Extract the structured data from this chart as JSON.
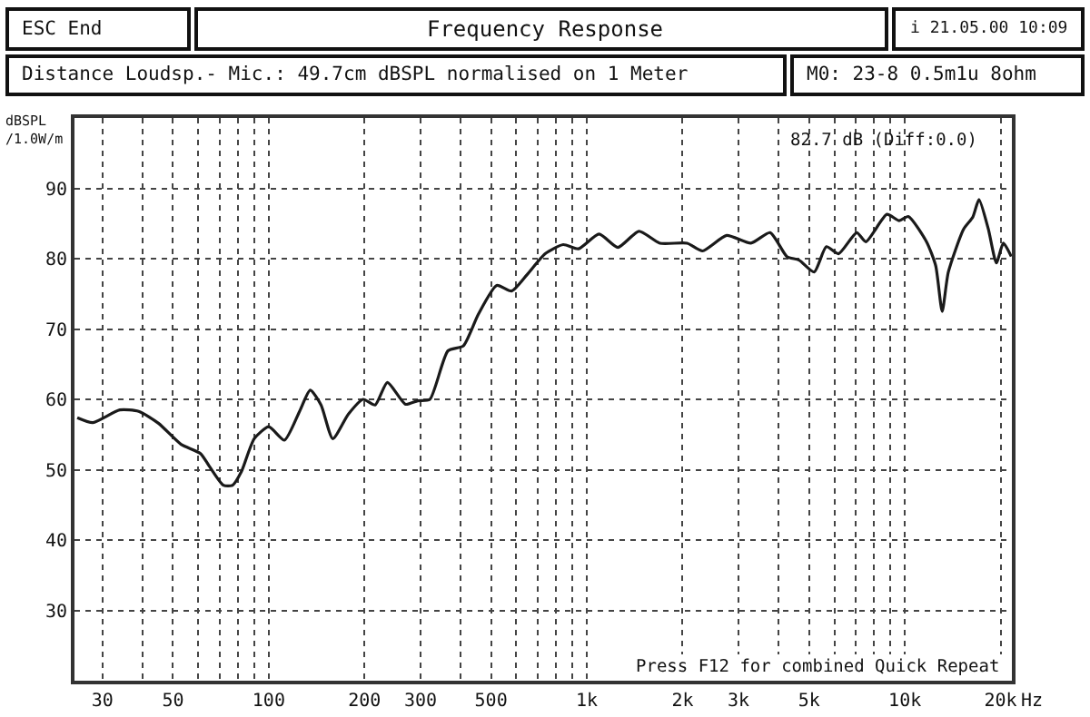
{
  "chart_data": {
    "type": "line",
    "title": "Frequency Response",
    "ylabel": "dBSPL\n/1.0W/m",
    "annotations": [
      "ESC End",
      "i 21.05.00 10:09",
      "Distance Loudsp.- Mic.: 49.7cm dBSPL normalised on 1 Meter",
      "M0: 23-8 0.5m1u 8ohm",
      "82.7 dB (Diff:0.0)",
      "Press F12 for combined Quick Repeat"
    ],
    "series": [
      {
        "color": "#1a1a1a",
        "x": [
          25,
          28,
          34,
          39,
          45,
          53,
          61,
          65,
          72,
          77,
          82,
          90,
          100,
          112,
          125,
          135,
          146,
          159,
          178,
          198,
          216,
          236,
          269,
          294,
          321,
          366,
          409,
          456,
          521,
          580,
          648,
          740,
          843,
          941,
          1093,
          1252,
          1458,
          1697,
          2067,
          2311,
          2752,
          3281,
          3771,
          4258,
          4649,
          5187,
          5663,
          6185,
          7059,
          7540,
          8780,
          9600,
          10250,
          11700,
          12500,
          13100,
          13700,
          15300,
          16350,
          17100,
          18300,
          19400,
          20400,
          21600
        ],
        "values": [
          57.4,
          56.7,
          58.5,
          58.3,
          56.6,
          53.6,
          52.3,
          50.5,
          47.8,
          47.8,
          49.7,
          54.4,
          56.1,
          54.2,
          58.3,
          61.3,
          59.2,
          54.4,
          57.9,
          60.0,
          59.2,
          62.4,
          59.3,
          59.8,
          60.0,
          66.9,
          67.6,
          72.1,
          76.2,
          75.4,
          77.7,
          80.7,
          82.0,
          81.4,
          83.5,
          81.6,
          83.9,
          82.2,
          82.2,
          81.1,
          83.3,
          82.2,
          83.7,
          80.3,
          79.8,
          78.1,
          81.7,
          80.7,
          83.7,
          82.4,
          86.3,
          85.4,
          86.0,
          82.4,
          79.0,
          72.5,
          78.1,
          84.2,
          85.9,
          88.4,
          84.2,
          79.4,
          82.2,
          80.3
        ]
      }
    ],
    "log": "x",
    "xlim": [
      24.5,
      21700
    ],
    "ylim": [
      20,
      100
    ],
    "xticks": [
      30,
      {
        "value": 40,
        "label": null
      },
      50,
      {
        "value": 60,
        "label": null
      },
      {
        "value": 70,
        "label": null
      },
      {
        "value": 80,
        "label": null
      },
      {
        "value": 90,
        "label": null
      },
      100,
      200,
      300,
      {
        "value": 400,
        "label": null
      },
      500,
      {
        "value": 600,
        "label": null
      },
      {
        "value": 700,
        "label": null
      },
      {
        "value": 800,
        "label": null
      },
      {
        "value": 900,
        "label": null
      },
      {
        "value": 1000,
        "label": "1k"
      },
      {
        "value": 2000,
        "label": "2k"
      },
      {
        "value": 3000,
        "label": "3k"
      },
      {
        "value": 4000,
        "label": null
      },
      {
        "value": 5000,
        "label": "5k"
      },
      {
        "value": 6000,
        "label": null
      },
      {
        "value": 7000,
        "label": null
      },
      {
        "value": 8000,
        "label": null
      },
      {
        "value": 9000,
        "label": null
      },
      {
        "value": 10000,
        "label": "10k"
      },
      {
        "value": 20000,
        "label": "20k"
      }
    ],
    "xlabel": "Hz",
    "yticks": [
      30,
      40,
      50,
      60,
      70,
      80,
      90
    ],
    "grid": true,
    "marker": "none",
    "line_style": "solid"
  }
}
